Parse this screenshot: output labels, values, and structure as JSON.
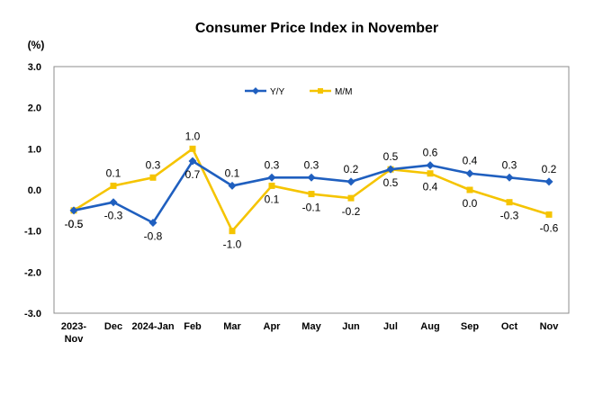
{
  "chart_data": {
    "type": "line",
    "title": "Consumer Price Index in November",
    "unit_label": "(%)",
    "categories": [
      "2023-\nNov",
      "Dec",
      "2024-Jan",
      "Feb",
      "Mar",
      "Apr",
      "May",
      "Jun",
      "Jul",
      "Aug",
      "Sep",
      "Oct",
      "Nov"
    ],
    "ylim": [
      -3.0,
      3.0
    ],
    "yticks": [
      3.0,
      2.0,
      1.0,
      0.0,
      -1.0,
      -2.0,
      -3.0
    ],
    "ytick_labels": [
      "3.0",
      "2.0",
      "1.0",
      "0.0",
      "-1.0",
      "-2.0",
      "-3.0"
    ],
    "grid": false,
    "legend_position": "top-center",
    "series": [
      {
        "name": "Y/Y",
        "color": "#1f5fbf",
        "marker": "diamond",
        "values": [
          -0.5,
          -0.3,
          -0.8,
          0.7,
          0.1,
          0.3,
          0.3,
          0.2,
          0.5,
          0.6,
          0.4,
          0.3,
          0.2
        ],
        "labels": [
          "-0.5",
          "-0.3",
          "-0.8",
          "0.7",
          "0.1",
          "0.3",
          "0.3",
          "0.2",
          "0.5",
          "0.6",
          "0.4",
          "0.3",
          "0.2"
        ]
      },
      {
        "name": "M/M",
        "color": "#f5c400",
        "marker": "square",
        "values": [
          -0.5,
          0.1,
          0.3,
          1.0,
          -1.0,
          0.1,
          -0.1,
          -0.2,
          0.5,
          0.4,
          0.0,
          -0.3,
          -0.6
        ],
        "labels": [
          "-0.5",
          "0.1",
          "0.3",
          "1.0",
          "-1.0",
          "0.1",
          "-0.1",
          "-0.2",
          "0.5",
          "0.4",
          "0.0",
          "-0.3",
          "-0.6"
        ]
      }
    ]
  }
}
